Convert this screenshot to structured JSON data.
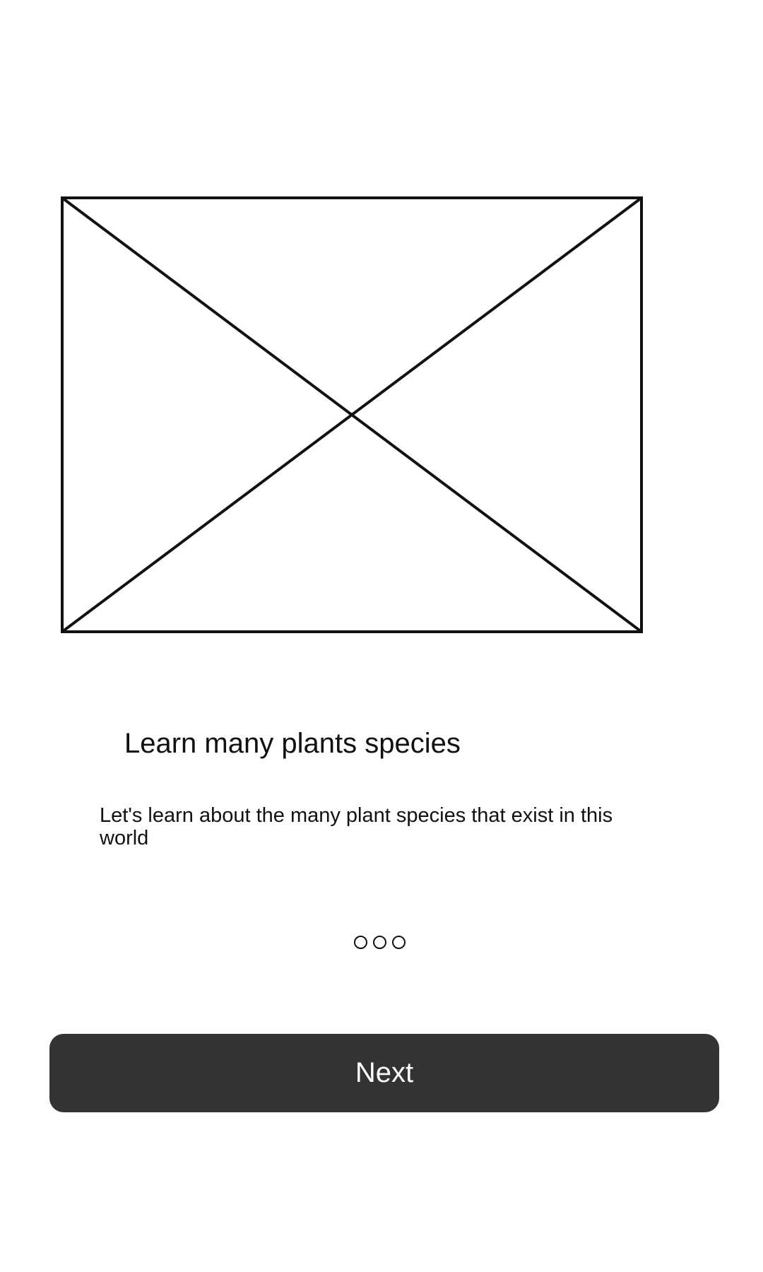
{
  "onboarding": {
    "image_placeholder_icon": "image-placeholder-icon",
    "title": "Learn many plants species",
    "description": "Let's learn about the many plant species that exist in this world",
    "pagination": {
      "total": 3
    },
    "next_label": "Next"
  },
  "colors": {
    "button_background": "#333333",
    "button_text": "#ffffff",
    "text": "#111111",
    "background": "#ffffff"
  }
}
